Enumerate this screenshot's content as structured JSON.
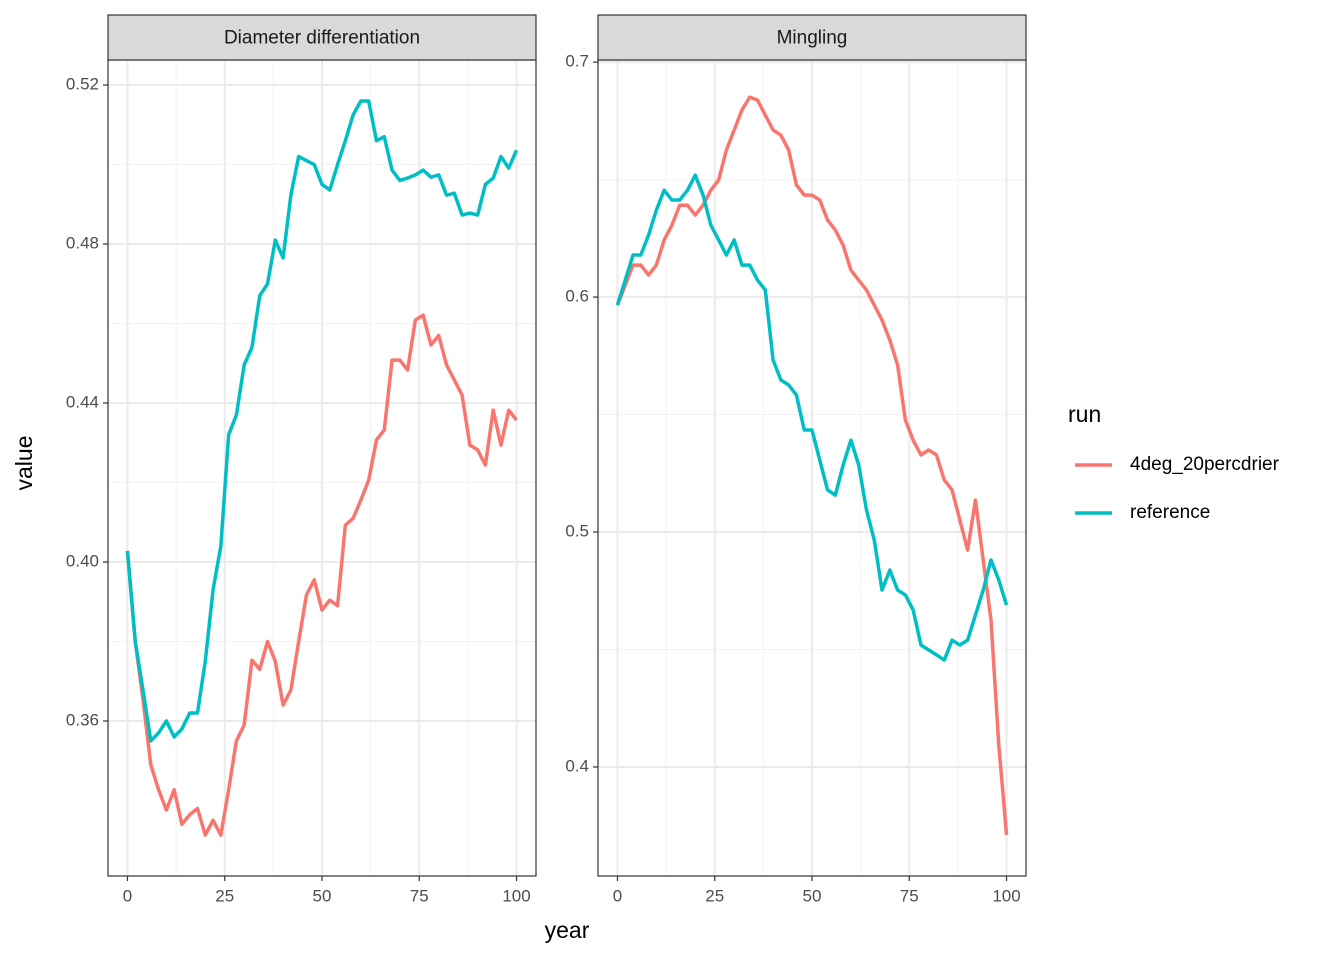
{
  "chart_data": [
    {
      "type": "line",
      "title": "Diameter differentiation",
      "x": [
        0,
        2,
        4,
        6,
        8,
        10,
        12,
        14,
        16,
        18,
        20,
        22,
        24,
        26,
        28,
        30,
        32,
        34,
        36,
        38,
        40,
        42,
        44,
        46,
        48,
        50,
        52,
        54,
        56,
        58,
        60,
        62,
        64,
        66,
        68,
        70,
        72,
        74,
        76,
        78,
        80,
        82,
        84,
        86,
        88,
        90,
        92,
        94,
        96,
        98,
        100
      ],
      "series": [
        {
          "name": "4deg_20percdrier",
          "color": "#F8766D",
          "values": [
            0.4028,
            0.38,
            0.3653,
            0.349,
            0.3427,
            0.3376,
            0.3427,
            0.334,
            0.3364,
            0.338,
            0.3313,
            0.335,
            0.3313,
            0.3427,
            0.355,
            0.359,
            0.3753,
            0.373,
            0.38,
            0.375,
            0.364,
            0.3678,
            0.38,
            0.3917,
            0.3955,
            0.3879,
            0.3904,
            0.389,
            0.4093,
            0.411,
            0.4156,
            0.4206,
            0.4307,
            0.4332,
            0.4508,
            0.4508,
            0.4483,
            0.4609,
            0.4621,
            0.4546,
            0.457,
            0.4496,
            0.4458,
            0.442,
            0.4294,
            0.4282,
            0.4244,
            0.4382,
            0.4294,
            0.4382,
            0.4357
          ]
        },
        {
          "name": "reference",
          "color": "#00BFC4",
          "values": [
            0.4028,
            0.38,
            0.3678,
            0.355,
            0.357,
            0.36,
            0.356,
            0.358,
            0.362,
            0.362,
            0.375,
            0.393,
            0.404,
            0.432,
            0.437,
            0.4496,
            0.454,
            0.467,
            0.47,
            0.481,
            0.4765,
            0.4923,
            0.502,
            0.501,
            0.5,
            0.495,
            0.4936,
            0.5,
            0.506,
            0.5125,
            0.516,
            0.516,
            0.506,
            0.507,
            0.4986,
            0.496,
            0.4966,
            0.4974,
            0.4986,
            0.4968,
            0.4974,
            0.4923,
            0.4928,
            0.4873,
            0.4878,
            0.4873,
            0.495,
            0.4966,
            0.502,
            0.4991,
            0.5036
          ]
        }
      ],
      "xlim": [
        -5,
        105
      ],
      "xticks": [
        0,
        25,
        50,
        75,
        100
      ],
      "ylim": [
        0.321,
        0.5263
      ],
      "yticks": [
        0.36,
        {
          "value": 0.4,
          "label": "0.40"
        },
        0.44,
        0.48,
        0.52
      ],
      "grid": true,
      "minor_grid": true
    },
    {
      "type": "line",
      "title": "Mingling",
      "x": [
        0,
        2,
        4,
        6,
        8,
        10,
        12,
        14,
        16,
        18,
        20,
        22,
        24,
        26,
        28,
        30,
        32,
        34,
        36,
        38,
        40,
        42,
        44,
        46,
        48,
        50,
        52,
        54,
        56,
        58,
        60,
        62,
        64,
        66,
        68,
        70,
        72,
        74,
        76,
        78,
        80,
        82,
        84,
        86,
        88,
        90,
        92,
        94,
        96,
        98,
        100
      ],
      "series": [
        {
          "name": "4deg_20percdrier",
          "color": "#F8766D",
          "values": [
            0.5966,
            0.6051,
            0.6136,
            0.6136,
            0.6094,
            0.6136,
            0.6243,
            0.6306,
            0.6391,
            0.6391,
            0.6349,
            0.6391,
            0.6455,
            0.6498,
            0.6626,
            0.6711,
            0.6796,
            0.6851,
            0.6838,
            0.6774,
            0.6711,
            0.6689,
            0.6626,
            0.6477,
            0.6434,
            0.6434,
            0.6413,
            0.6328,
            0.6285,
            0.6221,
            0.6115,
            0.6072,
            0.603,
            0.5966,
            0.5902,
            0.5817,
            0.5711,
            0.5477,
            0.5391,
            0.5328,
            0.5349,
            0.5328,
            0.5221,
            0.5179,
            0.5051,
            0.4923,
            0.5136,
            0.4881,
            0.4626,
            0.4094,
            0.3711
          ]
        },
        {
          "name": "reference",
          "color": "#00BFC4",
          "values": [
            0.5966,
            0.6072,
            0.6179,
            0.6179,
            0.6264,
            0.637,
            0.6455,
            0.6413,
            0.6413,
            0.6455,
            0.6519,
            0.6434,
            0.6306,
            0.6243,
            0.6179,
            0.6243,
            0.6136,
            0.6136,
            0.6072,
            0.603,
            0.5732,
            0.5647,
            0.5626,
            0.5583,
            0.5434,
            0.5434,
            0.5306,
            0.5179,
            0.5157,
            0.5285,
            0.5391,
            0.5285,
            0.5094,
            0.4966,
            0.4753,
            0.4838,
            0.4753,
            0.4732,
            0.4668,
            0.4519,
            0.4498,
            0.4477,
            0.4455,
            0.454,
            0.4519,
            0.454,
            0.4647,
            0.4753,
            0.4881,
            0.4796,
            0.4689
          ]
        }
      ],
      "xlim": [
        -5,
        105
      ],
      "xticks": [
        0,
        25,
        50,
        75,
        100
      ],
      "ylim": [
        0.3536,
        0.7009
      ],
      "yticks": [
        0.4,
        0.5,
        0.6,
        0.7
      ],
      "grid": true,
      "minor_grid": true
    }
  ],
  "xlabel": "year",
  "ylabel": "value",
  "legend_title": "run"
}
